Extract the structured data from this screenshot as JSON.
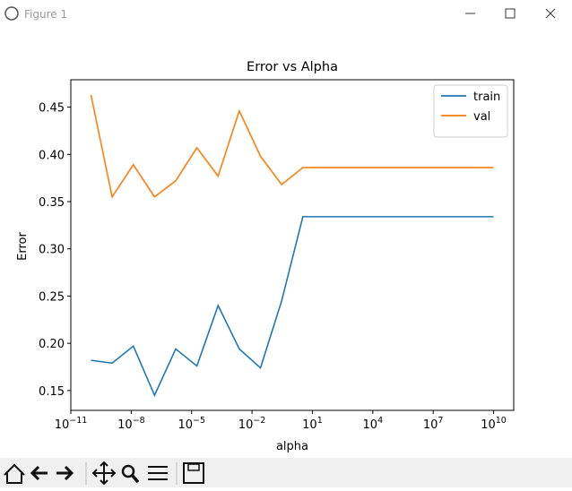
{
  "window": {
    "title": "Figure 1"
  },
  "chart_data": {
    "type": "line",
    "title": "Error vs Alpha",
    "x_label": "alpha",
    "y_label": "Error",
    "x": [
      1e-10,
      1.129e-09,
      1.274e-08,
      1.438e-07,
      1.624e-06,
      1.833e-05,
      0.0002069,
      0.002336,
      0.02637,
      0.2976,
      3.36,
      37.9,
      428.5,
      4833,
      54556,
      615848,
      6950000.0,
      78500000.0,
      886000000.0,
      10000000000.0
    ],
    "series": [
      {
        "name": "train",
        "color": "#1f77b4",
        "values": [
          0.182,
          0.179,
          0.197,
          0.145,
          0.194,
          0.176,
          0.24,
          0.194,
          0.174,
          0.245,
          0.334,
          0.334,
          0.334,
          0.334,
          0.334,
          0.334,
          0.334,
          0.334,
          0.334,
          0.334
        ]
      },
      {
        "name": "val",
        "color": "#ff7f0e",
        "values": [
          0.463,
          0.355,
          0.389,
          0.355,
          0.372,
          0.407,
          0.377,
          0.446,
          0.398,
          0.368,
          0.386,
          0.386,
          0.386,
          0.386,
          0.386,
          0.386,
          0.386,
          0.386,
          0.386,
          0.386
        ]
      }
    ],
    "x_scale": "log",
    "xlim": [
      1e-11,
      100000000000.0
    ],
    "xticks": [
      {
        "value": 1e-11,
        "label": "10−11"
      },
      {
        "value": 1e-08,
        "label": "10−8"
      },
      {
        "value": 1e-05,
        "label": "10−5"
      },
      {
        "value": 0.01,
        "label": "10−2"
      },
      {
        "value": 10,
        "label": "101"
      },
      {
        "value": 10000.0,
        "label": "104"
      },
      {
        "value": 10000000.0,
        "label": "107"
      },
      {
        "value": 10000000000.0,
        "label": "1010"
      }
    ],
    "ylim": [
      0.129,
      0.479
    ],
    "yticks": [
      0.15,
      {
        "value": 0.2,
        "label": "0.20"
      },
      0.25,
      {
        "value": 0.3,
        "label": "0.30"
      },
      0.35,
      {
        "value": 0.4,
        "label": "0.40"
      },
      0.45
    ],
    "legend": "upper right",
    "grid": false
  }
}
